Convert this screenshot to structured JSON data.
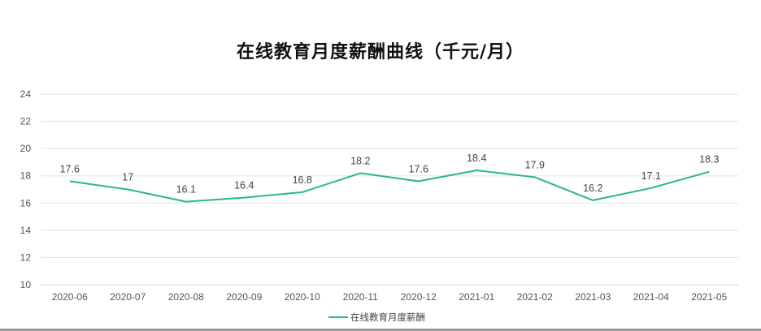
{
  "chart_data": {
    "type": "line",
    "title": "在线教育月度薪酬曲线（千元/月）",
    "categories": [
      "2020-06",
      "2020-07",
      "2020-08",
      "2020-09",
      "2020-10",
      "2020-11",
      "2020-12",
      "2021-01",
      "2021-02",
      "2021-03",
      "2021-04",
      "2021-05"
    ],
    "series": [
      {
        "name": "在线教育月度薪酬",
        "values": [
          17.6,
          17,
          16.1,
          16.4,
          16.8,
          18.2,
          17.6,
          18.4,
          17.9,
          16.2,
          17.1,
          18.3
        ],
        "value_labels": [
          "17.6",
          "17",
          "16.1",
          "16.4",
          "16.8",
          "18.2",
          "17.6",
          "18.4",
          "17.9",
          "16.2",
          "17.1",
          "18.3"
        ],
        "color": "#2bb58f"
      }
    ],
    "ylim": [
      10,
      24
    ],
    "yticks": [
      "10",
      "12",
      "14",
      "16",
      "18",
      "20",
      "22",
      "24"
    ],
    "xlabel": "",
    "ylabel": "",
    "grid": true,
    "legend": "bottom-center"
  },
  "colors": {
    "line": "#2bb58f",
    "grid": "#e3e3e3",
    "text": "#555555"
  }
}
